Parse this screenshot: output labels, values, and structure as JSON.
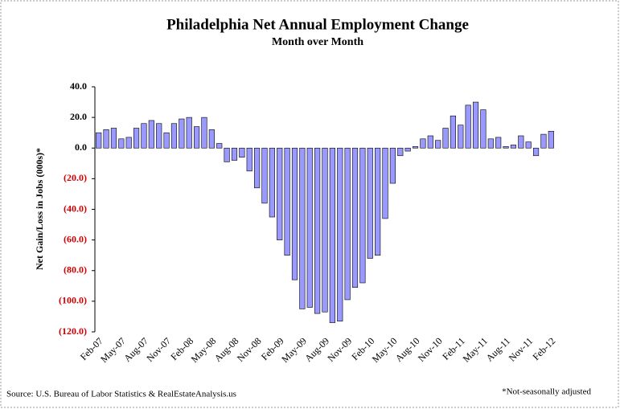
{
  "chart_data": {
    "type": "bar",
    "title": "Philadelphia  Net Annual  Employment  Change",
    "subtitle": "Month over Month",
    "y_label": "Net Gain/Loss in Jobs (000s)*",
    "source": "Source: U.S. Bureau of Labor Statistics & RealEstateAnalysis.us",
    "note": "*Not-seasonally adjusted",
    "categories": [
      "Feb-07",
      null,
      null,
      "May-07",
      null,
      null,
      "Aug-07",
      null,
      null,
      "Nov-07",
      null,
      null,
      "Feb-08",
      null,
      null,
      "May-08",
      null,
      null,
      "Aug-08",
      null,
      null,
      "Nov-08",
      null,
      null,
      "Feb-09",
      null,
      null,
      "May-09",
      null,
      null,
      "Aug-09",
      null,
      null,
      "Nov-09",
      null,
      null,
      "Feb-10",
      null,
      null,
      "May-10",
      null,
      null,
      "Aug-10",
      null,
      null,
      "Nov-10",
      null,
      null,
      "Feb-11",
      null,
      null,
      "May-11",
      null,
      null,
      "Aug-11",
      null,
      null,
      "Nov-11",
      null,
      null,
      "Feb-12"
    ],
    "values": [
      10,
      12,
      13,
      6,
      7,
      13,
      16,
      18,
      16,
      10,
      16,
      19,
      20,
      14,
      20,
      12,
      3,
      -9,
      -8,
      -6,
      -15,
      -26,
      -36,
      -45,
      -60,
      -70,
      -86,
      -105,
      -104,
      -108,
      -107,
      -114,
      -113,
      -99,
      -91,
      -88,
      -72,
      -70,
      -46,
      -23,
      -5,
      -2,
      1,
      6,
      8,
      5,
      13,
      21,
      15,
      28,
      30,
      25,
      6,
      7,
      1,
      2,
      8,
      4,
      -5,
      9,
      11
    ],
    "color": "#9999ff",
    "ylim": [
      -120,
      40
    ],
    "yticks": [
      {
        "value": 40,
        "label": "40.0"
      },
      {
        "value": 20,
        "label": "20.0"
      },
      {
        "value": 0,
        "label": "0.0"
      },
      {
        "value": -20,
        "label": "(20.0)"
      },
      {
        "value": -40,
        "label": "(40.0)"
      },
      {
        "value": -60,
        "label": "(60.0)"
      },
      {
        "value": -80,
        "label": "(80.0)"
      },
      {
        "value": -100,
        "label": "(100.0)"
      },
      {
        "value": -120,
        "label": "(120.0)"
      }
    ],
    "negative_tick_color": "#cc0000",
    "grid": false
  }
}
